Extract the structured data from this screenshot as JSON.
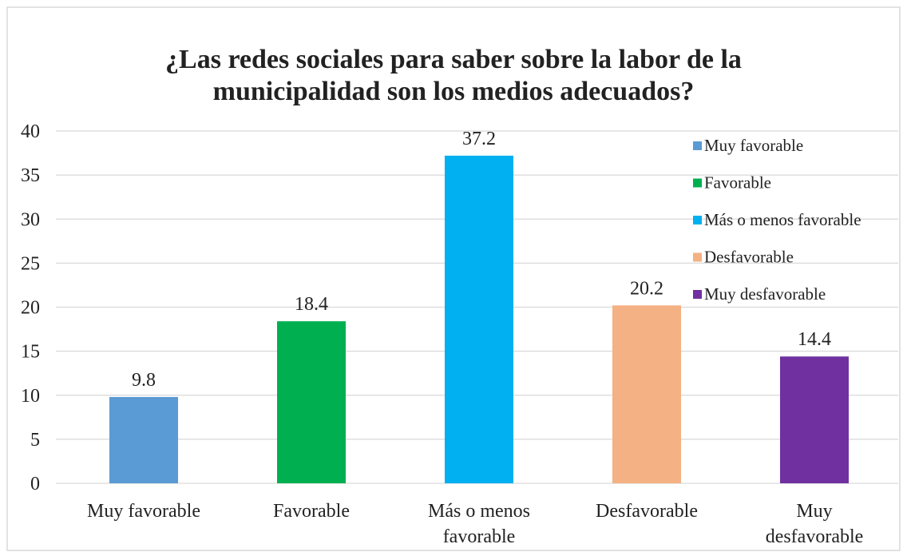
{
  "chart_data": {
    "type": "bar",
    "title": "¿Las redes sociales para saber sobre la labor de la municipalidad son los medios adecuados?",
    "categories": [
      "Muy favorable",
      "Favorable",
      "Más o menos favorable",
      "Desfavorable",
      "Muy desfavorable"
    ],
    "values": [
      9.8,
      18.4,
      37.2,
      20.2,
      14.4
    ],
    "colors": [
      "#5b9bd5",
      "#00b050",
      "#00b0f0",
      "#f4b183",
      "#7030a0"
    ],
    "ylim": [
      0,
      40
    ],
    "yticks": [
      0,
      5,
      10,
      15,
      20,
      25,
      30,
      35,
      40
    ],
    "grid": true,
    "legend": "right"
  }
}
